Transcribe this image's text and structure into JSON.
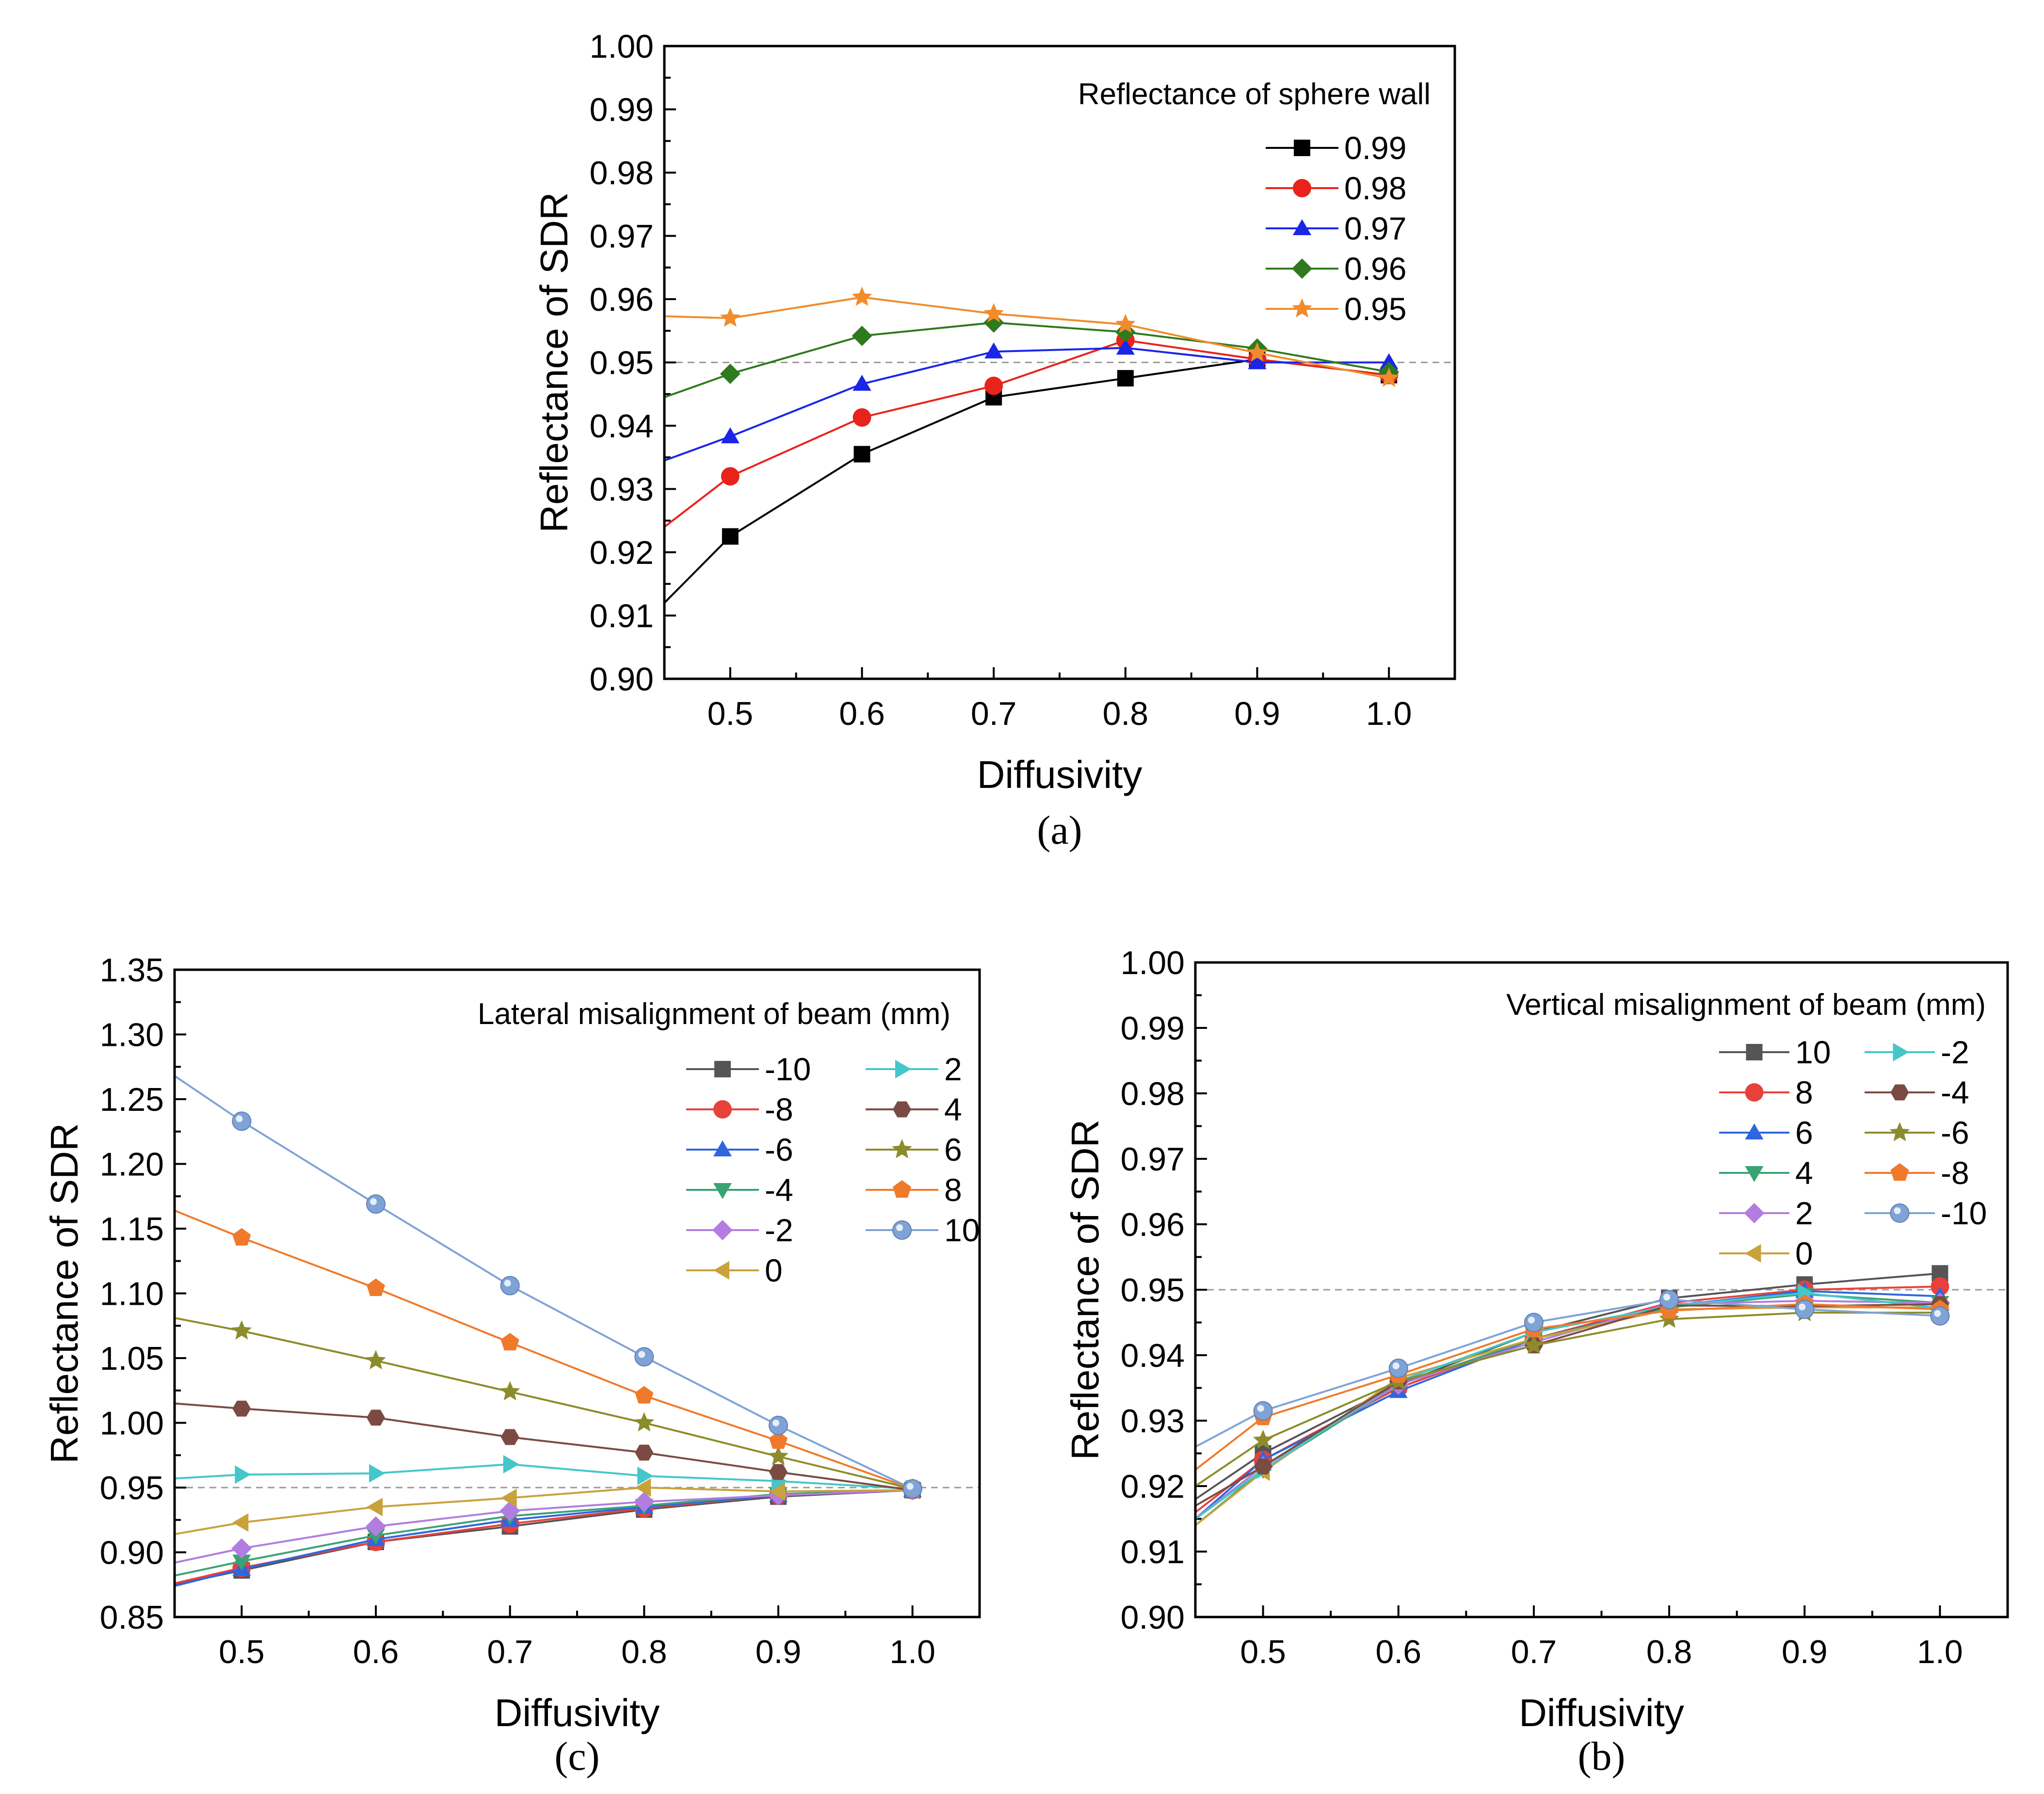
{
  "chart_data": [
    {
      "id": "a",
      "type": "line",
      "caption": "(a)",
      "xlabel": "Diffusivity",
      "ylabel": "Reflectance of SDR",
      "xlim": [
        0.45,
        1.05
      ],
      "ylim": [
        0.9,
        1.0
      ],
      "xticks": [
        "0.5",
        "0.6",
        "0.7",
        "0.8",
        "0.9",
        "1.0"
      ],
      "yticks": [
        "0.90",
        "0.91",
        "0.92",
        "0.93",
        "0.94",
        "0.95",
        "0.96",
        "0.97",
        "0.98",
        "0.99",
        "1.00"
      ],
      "reference_line": 0.95,
      "legend_title": "Reflectance of sphere wall",
      "legend_position": "top-right",
      "x": [
        0.45,
        0.5,
        0.6,
        0.7,
        0.8,
        0.9,
        1.0
      ],
      "series": [
        {
          "name": "0.99",
          "color": "#000000",
          "marker": "square",
          "values": [
            0.912,
            0.9225,
            0.9355,
            0.9445,
            0.9475,
            0.9505,
            0.948
          ]
        },
        {
          "name": "0.98",
          "color": "#e8231b",
          "marker": "circle",
          "values": [
            0.924,
            0.932,
            0.9413,
            0.9463,
            0.9535,
            0.9505,
            0.948
          ]
        },
        {
          "name": "0.97",
          "color": "#1a25e8",
          "marker": "triangle",
          "values": [
            0.9345,
            0.9383,
            0.9466,
            0.9517,
            0.9523,
            0.95,
            0.95
          ]
        },
        {
          "name": "0.96",
          "color": "#2e7a1d",
          "marker": "diamond",
          "values": [
            0.9445,
            0.9482,
            0.9542,
            0.9563,
            0.9548,
            0.9522,
            0.9485
          ]
        },
        {
          "name": "0.95",
          "color": "#f08c2c",
          "marker": "star",
          "values": [
            0.9573,
            0.957,
            0.9603,
            0.9577,
            0.956,
            0.9515,
            0.9475
          ]
        }
      ]
    },
    {
      "id": "c",
      "type": "line",
      "caption": "(c)",
      "xlabel": "Diffusivity",
      "ylabel": "Reflectance of SDR",
      "xlim": [
        0.45,
        1.05
      ],
      "ylim": [
        0.85,
        1.35
      ],
      "xticks": [
        "0.5",
        "0.6",
        "0.7",
        "0.8",
        "0.9",
        "1.0"
      ],
      "yticks": [
        "0.85",
        "0.90",
        "0.95",
        "1.00",
        "1.05",
        "1.10",
        "1.15",
        "1.20",
        "1.25",
        "1.30",
        "1.35"
      ],
      "reference_line": 0.95,
      "legend_title": "Lateral misalignment of beam (mm)",
      "legend_position": "top-right",
      "x": [
        0.45,
        0.5,
        0.6,
        0.7,
        0.8,
        0.9,
        1.0
      ],
      "series": [
        {
          "name": "-10",
          "color": "#555555",
          "marker": "square",
          "values": [
            0.875,
            0.886,
            0.908,
            0.92,
            0.933,
            0.943,
            0.948
          ]
        },
        {
          "name": "-8",
          "color": "#e8413b",
          "marker": "circle",
          "values": [
            0.876,
            0.888,
            0.908,
            0.922,
            0.934,
            0.944,
            0.948
          ]
        },
        {
          "name": "-6",
          "color": "#2f66e0",
          "marker": "triangle",
          "values": [
            0.874,
            0.887,
            0.91,
            0.925,
            0.935,
            0.944,
            0.948
          ]
        },
        {
          "name": "-4",
          "color": "#3aa373",
          "marker": "tri-down",
          "values": [
            0.882,
            0.893,
            0.913,
            0.928,
            0.936,
            0.945,
            0.948
          ]
        },
        {
          "name": "-2",
          "color": "#b27de0",
          "marker": "diamond",
          "values": [
            0.892,
            0.903,
            0.92,
            0.932,
            0.939,
            0.944,
            0.948
          ]
        },
        {
          "name": "0",
          "color": "#c9a23b",
          "marker": "tri-left",
          "values": [
            0.914,
            0.923,
            0.935,
            0.942,
            0.95,
            0.947,
            0.948
          ]
        },
        {
          "name": "2",
          "color": "#44c6cb",
          "marker": "tri-right",
          "values": [
            0.957,
            0.96,
            0.961,
            0.968,
            0.959,
            0.955,
            0.949
          ]
        },
        {
          "name": "4",
          "color": "#7b4b43",
          "marker": "hexagon",
          "values": [
            1.015,
            1.011,
            1.004,
            0.989,
            0.977,
            0.962,
            0.948
          ]
        },
        {
          "name": "6",
          "color": "#8c8c2c",
          "marker": "star",
          "values": [
            1.081,
            1.071,
            1.048,
            1.024,
            1.0,
            0.974,
            0.949
          ]
        },
        {
          "name": "8",
          "color": "#f07a2c",
          "marker": "pentagon",
          "values": [
            1.164,
            1.143,
            1.104,
            1.062,
            1.021,
            0.986,
            0.949
          ]
        },
        {
          "name": "10",
          "color": "#7fa3d6",
          "marker": "sphere",
          "values": [
            1.268,
            1.233,
            1.169,
            1.106,
            1.051,
            0.998,
            0.949
          ]
        }
      ]
    },
    {
      "id": "b",
      "type": "line",
      "caption": "(b)",
      "xlabel": "Diffusivity",
      "ylabel": "Reflectance of SDR",
      "xlim": [
        0.45,
        1.05
      ],
      "ylim": [
        0.9,
        1.0
      ],
      "xticks": [
        "0.5",
        "0.6",
        "0.7",
        "0.8",
        "0.9",
        "1.0"
      ],
      "yticks": [
        "0.90",
        "0.91",
        "0.92",
        "0.93",
        "0.94",
        "0.95",
        "0.96",
        "0.97",
        "0.98",
        "0.99",
        "1.00"
      ],
      "reference_line": 0.95,
      "legend_title": "Vertical misalignment of beam (mm)",
      "legend_position": "top-right",
      "x": [
        0.45,
        0.5,
        0.6,
        0.7,
        0.8,
        0.9,
        1.0
      ],
      "series": [
        {
          "name": "10",
          "color": "#555555",
          "marker": "square",
          "values": [
            0.918,
            0.925,
            0.9355,
            0.9435,
            0.9487,
            0.9508,
            0.9525
          ]
        },
        {
          "name": "8",
          "color": "#e8413b",
          "marker": "circle",
          "values": [
            0.916,
            0.924,
            0.935,
            0.9425,
            0.948,
            0.95,
            0.9505
          ]
        },
        {
          "name": "6",
          "color": "#2f66e0",
          "marker": "triangle",
          "values": [
            0.915,
            0.924,
            0.9345,
            0.9425,
            0.9475,
            0.9498,
            0.949
          ]
        },
        {
          "name": "4",
          "color": "#3aa373",
          "marker": "tri-down",
          "values": [
            0.914,
            0.9225,
            0.9355,
            0.9425,
            0.9473,
            0.9493,
            0.948
          ]
        },
        {
          "name": "2",
          "color": "#b27de0",
          "marker": "diamond",
          "values": [
            0.915,
            0.923,
            0.9355,
            0.942,
            0.9478,
            0.9483,
            0.948
          ]
        },
        {
          "name": "0",
          "color": "#c9a23b",
          "marker": "tri-left",
          "values": [
            0.914,
            0.9222,
            0.9365,
            0.9425,
            0.947,
            0.9473,
            0.9473
          ]
        },
        {
          "name": "-2",
          "color": "#44c6cb",
          "marker": "tri-right",
          "values": [
            0.915,
            0.9225,
            0.936,
            0.9435,
            0.9475,
            0.9495,
            0.9472
          ]
        },
        {
          "name": "-4",
          "color": "#7b4b43",
          "marker": "hexagon",
          "values": [
            0.917,
            0.923,
            0.936,
            0.9415,
            0.9476,
            0.9475,
            0.9478
          ]
        },
        {
          "name": "-6",
          "color": "#8c8c2c",
          "marker": "star",
          "values": [
            0.92,
            0.927,
            0.936,
            0.9415,
            0.9455,
            0.9465,
            0.9465
          ]
        },
        {
          "name": "-8",
          "color": "#f07a2c",
          "marker": "pentagon",
          "values": [
            0.9225,
            0.9305,
            0.937,
            0.944,
            0.9468,
            0.9478,
            0.947
          ]
        },
        {
          "name": "-10",
          "color": "#7fa3d6",
          "marker": "sphere",
          "values": [
            0.926,
            0.9315,
            0.938,
            0.945,
            0.9485,
            0.947,
            0.946
          ]
        }
      ]
    }
  ]
}
